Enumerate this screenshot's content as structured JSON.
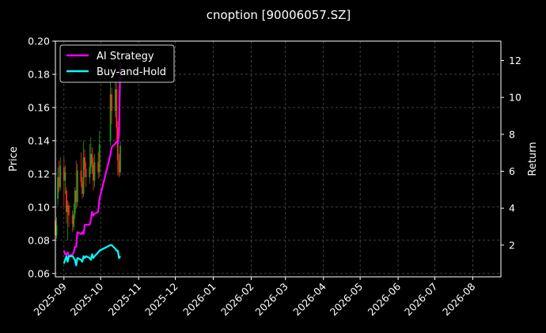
{
  "chart_data": {
    "type": "line",
    "title": "cnoption [90006057.SZ]",
    "ylabel": "Price",
    "y2label": "Return",
    "ylim": [
      0.058,
      0.2
    ],
    "y2lim": [
      0.28,
      13.05
    ],
    "xlim": [
      "2025-08-25",
      "2026-08-24"
    ],
    "grid": true,
    "legend_position": "top-left",
    "yticks": [
      0.06,
      0.08,
      0.1,
      0.12,
      0.14,
      0.16,
      0.18,
      0.2
    ],
    "ytick_labels": [
      "0.06",
      "0.08",
      "0.10",
      "0.12",
      "0.14",
      "0.16",
      "0.18",
      "0.20"
    ],
    "y2ticks": [
      2,
      4,
      6,
      8,
      10,
      12
    ],
    "xticks": [
      "2025-09-01",
      "2025-10-01",
      "2025-11-01",
      "2025-12-01",
      "2026-01-01",
      "2026-02-01",
      "2026-03-01",
      "2026-04-01",
      "2026-05-01",
      "2026-06-01",
      "2026-07-01",
      "2026-08-01"
    ],
    "xtick_labels": [
      "2025-09",
      "2025-10",
      "2025-11",
      "2025-12",
      "2026-01",
      "2026-02",
      "2026-03",
      "2026-04",
      "2026-05",
      "2026-06",
      "2026-07",
      "2026-08"
    ],
    "series": [
      {
        "name": "AI Strategy",
        "axis": "right",
        "color": "#ff00ff",
        "x": [
          "2025-09-01",
          "2025-09-02",
          "2025-09-03",
          "2025-09-04",
          "2025-09-05",
          "2025-09-08",
          "2025-09-09",
          "2025-09-10",
          "2025-09-11",
          "2025-09-12",
          "2025-09-15",
          "2025-09-16",
          "2025-09-17",
          "2025-09-18",
          "2025-09-19",
          "2025-09-22",
          "2025-09-23",
          "2025-09-24",
          "2025-09-25",
          "2025-09-26",
          "2025-09-29",
          "2025-09-30",
          "2025-10-09",
          "2025-10-10",
          "2025-10-13",
          "2025-10-14",
          "2025-10-15",
          "2025-10-16",
          "2025-10-17"
        ],
        "y": [
          1.7,
          1.5,
          1.5,
          1.6,
          1.4,
          1.5,
          1.6,
          1.9,
          1.9,
          2.7,
          2.6,
          2.7,
          2.6,
          3.1,
          3.1,
          3.1,
          3.4,
          3.8,
          3.6,
          3.7,
          3.8,
          4.5,
          6.9,
          7.3,
          7.5,
          7.6,
          7.5,
          8.0,
          11.9
        ]
      },
      {
        "name": "Buy-and-Hold",
        "axis": "right",
        "color": "#00ffff",
        "x": [
          "2025-09-01",
          "2025-09-02",
          "2025-09-03",
          "2025-09-04",
          "2025-09-05",
          "2025-09-08",
          "2025-09-09",
          "2025-09-10",
          "2025-09-11",
          "2025-09-12",
          "2025-09-15",
          "2025-09-16",
          "2025-09-17",
          "2025-09-18",
          "2025-09-19",
          "2025-09-22",
          "2025-09-23",
          "2025-09-24",
          "2025-09-25",
          "2025-09-26",
          "2025-09-29",
          "2025-09-30",
          "2025-10-09",
          "2025-10-10",
          "2025-10-13",
          "2025-10-14",
          "2025-10-15",
          "2025-10-16",
          "2025-10-17"
        ],
        "y": [
          1.0,
          1.2,
          1.4,
          1.1,
          1.4,
          1.4,
          1.3,
          1.2,
          0.9,
          1.3,
          1.2,
          1.1,
          1.4,
          1.3,
          1.4,
          1.3,
          1.2,
          1.5,
          1.3,
          1.4,
          1.6,
          1.7,
          2.0,
          2.0,
          1.8,
          1.7,
          1.7,
          1.3,
          1.4
        ]
      }
    ],
    "candles": [
      {
        "x": "2025-08-25",
        "o": 0.092,
        "c": 0.083,
        "h": 0.095,
        "l": 0.08
      },
      {
        "x": "2025-08-26",
        "o": 0.083,
        "c": 0.089,
        "h": 0.094,
        "l": 0.081
      },
      {
        "x": "2025-08-27",
        "o": 0.105,
        "c": 0.118,
        "h": 0.124,
        "l": 0.101
      },
      {
        "x": "2025-08-28",
        "o": 0.118,
        "c": 0.112,
        "h": 0.128,
        "l": 0.109
      },
      {
        "x": "2025-08-29",
        "o": 0.112,
        "c": 0.125,
        "h": 0.13,
        "l": 0.11
      },
      {
        "x": "2025-09-01",
        "o": 0.124,
        "c": 0.116,
        "h": 0.13,
        "l": 0.1
      },
      {
        "x": "2025-09-02",
        "o": 0.116,
        "c": 0.121,
        "h": 0.125,
        "l": 0.108
      },
      {
        "x": "2025-09-03",
        "o": 0.11,
        "c": 0.097,
        "h": 0.112,
        "l": 0.09
      },
      {
        "x": "2025-09-04",
        "o": 0.097,
        "c": 0.101,
        "h": 0.104,
        "l": 0.08
      },
      {
        "x": "2025-09-05",
        "o": 0.101,
        "c": 0.095,
        "h": 0.103,
        "l": 0.088
      },
      {
        "x": "2025-09-08",
        "o": 0.095,
        "c": 0.09,
        "h": 0.098,
        "l": 0.085
      },
      {
        "x": "2025-09-09",
        "o": 0.088,
        "c": 0.096,
        "h": 0.102,
        "l": 0.086
      },
      {
        "x": "2025-09-10",
        "o": 0.096,
        "c": 0.11,
        "h": 0.112,
        "l": 0.093
      },
      {
        "x": "2025-09-11",
        "o": 0.11,
        "c": 0.103,
        "h": 0.128,
        "l": 0.099
      },
      {
        "x": "2025-09-12",
        "o": 0.103,
        "c": 0.122,
        "h": 0.126,
        "l": 0.1
      },
      {
        "x": "2025-09-15",
        "o": 0.122,
        "c": 0.115,
        "h": 0.133,
        "l": 0.112
      },
      {
        "x": "2025-09-16",
        "o": 0.115,
        "c": 0.108,
        "h": 0.118,
        "l": 0.105
      },
      {
        "x": "2025-09-17",
        "o": 0.108,
        "c": 0.13,
        "h": 0.14,
        "l": 0.106
      },
      {
        "x": "2025-09-18",
        "o": 0.13,
        "c": 0.123,
        "h": 0.135,
        "l": 0.118
      },
      {
        "x": "2025-09-19",
        "o": 0.123,
        "c": 0.118,
        "h": 0.127,
        "l": 0.112
      },
      {
        "x": "2025-09-22",
        "o": 0.118,
        "c": 0.124,
        "h": 0.138,
        "l": 0.114
      },
      {
        "x": "2025-09-23",
        "o": 0.124,
        "c": 0.132,
        "h": 0.142,
        "l": 0.12
      },
      {
        "x": "2025-09-24",
        "o": 0.132,
        "c": 0.126,
        "h": 0.136,
        "l": 0.12
      },
      {
        "x": "2025-09-25",
        "o": 0.126,
        "c": 0.116,
        "h": 0.13,
        "l": 0.11
      },
      {
        "x": "2025-09-26",
        "o": 0.116,
        "c": 0.127,
        "h": 0.132,
        "l": 0.112
      },
      {
        "x": "2025-09-29",
        "o": 0.127,
        "c": 0.121,
        "h": 0.133,
        "l": 0.117
      },
      {
        "x": "2025-09-30",
        "o": 0.121,
        "c": 0.138,
        "h": 0.146,
        "l": 0.118
      },
      {
        "x": "2025-10-09",
        "o": 0.14,
        "c": 0.168,
        "h": 0.175,
        "l": 0.137
      },
      {
        "x": "2025-10-10",
        "o": 0.168,
        "c": 0.158,
        "h": 0.172,
        "l": 0.15
      },
      {
        "x": "2025-10-13",
        "o": 0.158,
        "c": 0.171,
        "h": 0.176,
        "l": 0.154
      },
      {
        "x": "2025-10-14",
        "o": 0.171,
        "c": 0.148,
        "h": 0.175,
        "l": 0.14
      },
      {
        "x": "2025-10-15",
        "o": 0.148,
        "c": 0.128,
        "h": 0.152,
        "l": 0.119
      },
      {
        "x": "2025-10-16",
        "o": 0.128,
        "c": 0.121,
        "h": 0.132,
        "l": 0.118
      },
      {
        "x": "2025-10-17",
        "o": 0.121,
        "c": 0.137,
        "h": 0.14,
        "l": 0.119
      }
    ],
    "colors": {
      "up": "#1e9e1e",
      "down": "#ff2a1a",
      "grid": "#666666",
      "axis": "#ffffff"
    }
  }
}
